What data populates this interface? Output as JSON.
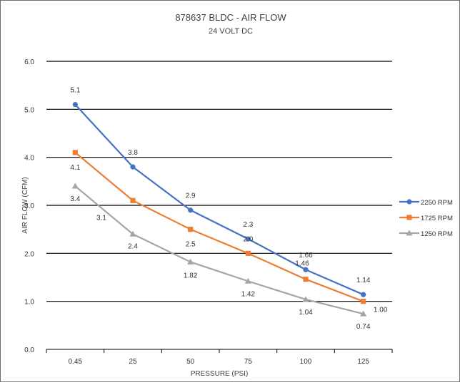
{
  "chart_data": {
    "type": "line",
    "title": "878637 BLDC - AIR FLOW",
    "subtitle": "24 VOLT DC",
    "xlabel": "PRESSURE (PSI)",
    "ylabel": "AIR FLOW (CFM)",
    "categories": [
      "0.45",
      "25",
      "50",
      "75",
      "100",
      "125"
    ],
    "ylim": [
      0,
      6
    ],
    "yticks": [
      "0.0",
      "1.0",
      "2.0",
      "3.0",
      "4.0",
      "5.0",
      "6.0"
    ],
    "grid": true,
    "legend_position": "right",
    "series": [
      {
        "name": "2250 RPM",
        "color": "#4472c4",
        "marker": "circle",
        "values": [
          5.1,
          3.8,
          2.9,
          2.3,
          1.66,
          1.14
        ],
        "labels": [
          "5.1",
          "3.8",
          "2.9",
          "2.3",
          "1.66",
          "1.14"
        ]
      },
      {
        "name": "1725 RPM",
        "color": "#ed7d31",
        "marker": "square",
        "values": [
          4.1,
          3.1,
          2.5,
          2.0,
          1.46,
          1.0
        ],
        "labels": [
          "4.1",
          "3.1",
          "2.5",
          "2.0",
          "1.46",
          "1.00"
        ]
      },
      {
        "name": "1250 RPM",
        "color": "#a5a5a5",
        "marker": "triangle",
        "values": [
          3.4,
          2.4,
          1.82,
          1.42,
          1.04,
          0.74
        ],
        "labels": [
          "3.4",
          "2.4",
          "1.82",
          "1.42",
          "1.04",
          "0.74"
        ]
      }
    ]
  }
}
